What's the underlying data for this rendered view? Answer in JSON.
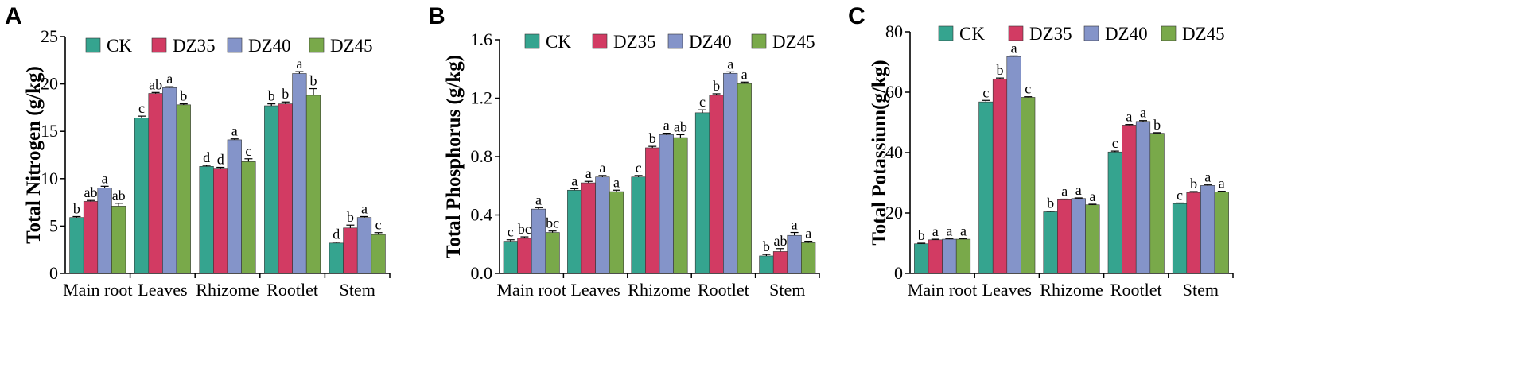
{
  "chart_data": [
    {
      "type": "bar",
      "panel": "A",
      "ylabel": "Total Nitrogen (g/kg)",
      "ylim": [
        0,
        25
      ],
      "yticks": [
        0,
        5,
        10,
        15,
        20,
        25
      ],
      "ytick_labels": [
        "0",
        "5",
        "10",
        "15",
        "20",
        "25"
      ],
      "categories": [
        "Main root",
        "Leaves",
        "Rhizome",
        "Rootlet",
        "Stem"
      ],
      "series": [
        {
          "name": "CK",
          "values": [
            5.9,
            16.4,
            11.3,
            17.7,
            3.2
          ],
          "errors": [
            0.1,
            0.2,
            0.1,
            0.2,
            0.1
          ],
          "letters": [
            "b",
            "c",
            "d",
            "b",
            "d"
          ]
        },
        {
          "name": "DZ35",
          "values": [
            7.6,
            19.0,
            11.1,
            17.9,
            4.8
          ],
          "errors": [
            0.1,
            0.1,
            0.1,
            0.2,
            0.3
          ],
          "letters": [
            "ab",
            "ab",
            "d",
            "b",
            "b"
          ]
        },
        {
          "name": "DZ40",
          "values": [
            9.0,
            19.6,
            14.1,
            21.1,
            5.9
          ],
          "errors": [
            0.2,
            0.1,
            0.1,
            0.2,
            0.1
          ],
          "letters": [
            "a",
            "a",
            "a",
            "a",
            "a"
          ]
        },
        {
          "name": "DZ45",
          "values": [
            7.1,
            17.8,
            11.8,
            18.8,
            4.1
          ],
          "errors": [
            0.3,
            0.1,
            0.3,
            0.7,
            0.2
          ],
          "letters": [
            "ab",
            "b",
            "c",
            "b",
            "c"
          ]
        }
      ],
      "legend_position": "top"
    },
    {
      "type": "bar",
      "panel": "B",
      "ylabel": "Total Phosphorus (g/kg)",
      "ylim": [
        0,
        1.6
      ],
      "yticks": [
        0,
        0.4,
        0.8,
        1.2,
        1.6
      ],
      "ytick_labels": [
        "0.0",
        "0.4",
        "0.8",
        "1.2",
        "1.6"
      ],
      "categories": [
        "Main root",
        "Leaves",
        "Rhizome",
        "Rootlet",
        "Stem"
      ],
      "series": [
        {
          "name": "CK",
          "values": [
            0.22,
            0.57,
            0.66,
            1.1,
            0.12
          ],
          "errors": [
            0.01,
            0.01,
            0.01,
            0.02,
            0.01
          ],
          "letters": [
            "c",
            "a",
            "c",
            "c",
            "b"
          ]
        },
        {
          "name": "DZ35",
          "values": [
            0.24,
            0.62,
            0.86,
            1.22,
            0.15
          ],
          "errors": [
            0.01,
            0.01,
            0.01,
            0.01,
            0.02
          ],
          "letters": [
            "bc",
            "a",
            "b",
            "b",
            "ab"
          ]
        },
        {
          "name": "DZ40",
          "values": [
            0.44,
            0.66,
            0.95,
            1.37,
            0.26
          ],
          "errors": [
            0.01,
            0.01,
            0.01,
            0.01,
            0.02
          ],
          "letters": [
            "a",
            "a",
            "a",
            "a",
            "a"
          ]
        },
        {
          "name": "DZ45",
          "values": [
            0.28,
            0.56,
            0.93,
            1.3,
            0.21
          ],
          "errors": [
            0.01,
            0.01,
            0.02,
            0.01,
            0.01
          ],
          "letters": [
            "bc",
            "a",
            "ab",
            "a",
            "a"
          ]
        }
      ],
      "legend_position": "top"
    },
    {
      "type": "bar",
      "panel": "C",
      "ylabel": "Total Potassium(g/kg)",
      "ylim": [
        0,
        80
      ],
      "yticks": [
        0,
        20,
        40,
        60,
        80
      ],
      "ytick_labels": [
        "0",
        "20",
        "40",
        "60",
        "80"
      ],
      "categories": [
        "Main root",
        "Leaves",
        "Rhizome",
        "Rootlet",
        "Stem"
      ],
      "series": [
        {
          "name": "CK",
          "values": [
            9.8,
            56.8,
            20.4,
            40.2,
            23.1
          ],
          "errors": [
            0.2,
            0.5,
            0.2,
            0.3,
            0.2
          ],
          "letters": [
            "b",
            "c",
            "b",
            "c",
            "c"
          ]
        },
        {
          "name": "DZ35",
          "values": [
            11.1,
            64.4,
            24.4,
            49.1,
            26.8
          ],
          "errors": [
            0.2,
            0.3,
            0.2,
            0.2,
            0.3
          ],
          "letters": [
            "a",
            "b",
            "a",
            "a",
            "b"
          ]
        },
        {
          "name": "DZ40",
          "values": [
            11.3,
            71.8,
            24.8,
            50.3,
            29.1
          ],
          "errors": [
            0.2,
            0.2,
            0.2,
            0.3,
            0.3
          ],
          "letters": [
            "a",
            "a",
            "a",
            "a",
            "a"
          ]
        },
        {
          "name": "DZ45",
          "values": [
            11.3,
            58.3,
            22.7,
            46.4,
            27.0
          ],
          "errors": [
            0.2,
            0.2,
            0.2,
            0.2,
            0.2
          ],
          "letters": [
            "a",
            "c",
            "a",
            "b",
            "a"
          ]
        }
      ],
      "legend_position": "top"
    }
  ],
  "panels": {
    "labels": [
      "A",
      "B",
      "C"
    ]
  },
  "colors": {
    "CK": "#35a48f",
    "DZ35": "#d23b63",
    "DZ40": "#8494c9",
    "DZ45": "#79a94a"
  },
  "legend_labels": [
    "CK",
    "DZ35",
    "DZ40",
    "DZ45"
  ]
}
